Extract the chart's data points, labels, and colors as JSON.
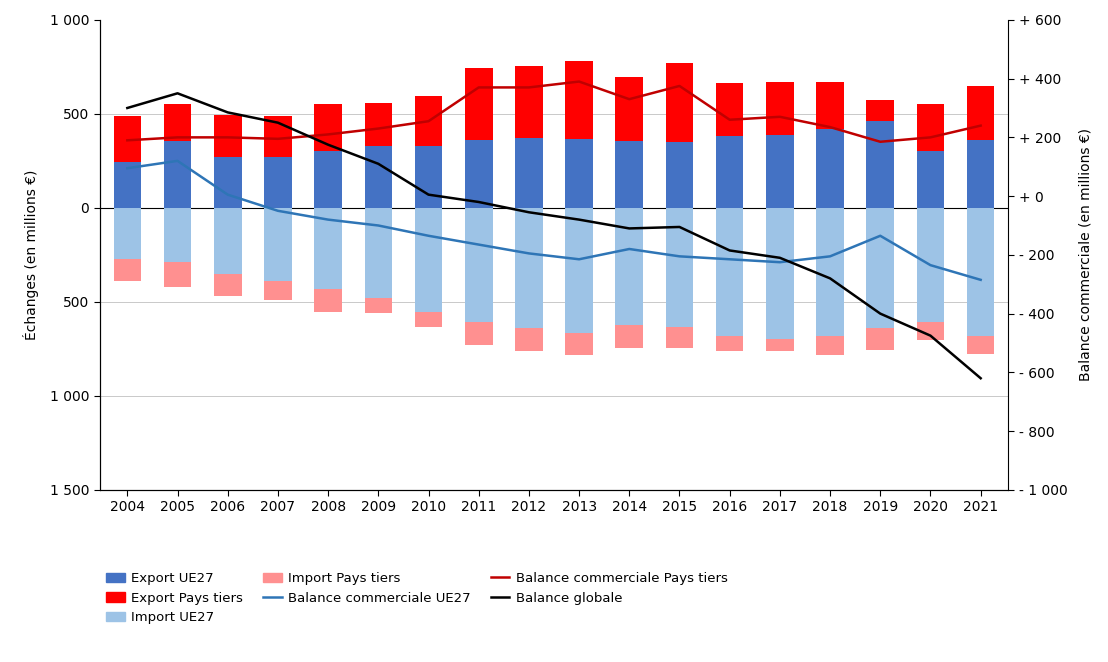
{
  "years": [
    2004,
    2005,
    2006,
    2007,
    2008,
    2009,
    2010,
    2011,
    2012,
    2013,
    2014,
    2015,
    2016,
    2017,
    2018,
    2019,
    2020,
    2021
  ],
  "export_ue27": [
    245,
    355,
    270,
    270,
    300,
    330,
    330,
    360,
    370,
    365,
    355,
    350,
    380,
    390,
    420,
    460,
    305,
    360
  ],
  "export_pays_tiers": [
    245,
    195,
    225,
    220,
    255,
    230,
    265,
    385,
    385,
    415,
    340,
    420,
    285,
    280,
    250,
    115,
    245,
    290
  ],
  "import_ue27": [
    -270,
    -290,
    -350,
    -390,
    -430,
    -480,
    -555,
    -605,
    -640,
    -665,
    -625,
    -635,
    -680,
    -700,
    -680,
    -640,
    -605,
    -680
  ],
  "import_pays_tiers": [
    -120,
    -130,
    -120,
    -100,
    -125,
    -80,
    -80,
    -125,
    -120,
    -120,
    -120,
    -110,
    -80,
    -60,
    -100,
    -115,
    -100,
    -95
  ],
  "balance_ue27": [
    95,
    120,
    5,
    -50,
    -80,
    -100,
    -135,
    -165,
    -195,
    -215,
    -180,
    -205,
    -215,
    -225,
    -205,
    -135,
    -235,
    -285
  ],
  "balance_pays_tiers": [
    190,
    200,
    200,
    195,
    210,
    230,
    255,
    370,
    370,
    390,
    330,
    375,
    260,
    270,
    235,
    185,
    200,
    240
  ],
  "balance_globale": [
    300,
    350,
    285,
    250,
    175,
    110,
    5,
    -20,
    -55,
    -80,
    -110,
    -105,
    -185,
    -210,
    -280,
    -400,
    -475,
    -620
  ],
  "bar_width": 0.55,
  "left_ylim": [
    -1500,
    1000
  ],
  "right_ylim": [
    -1000,
    600
  ],
  "left_yticks": [
    -1500,
    -1000,
    -500,
    0,
    500,
    1000
  ],
  "left_yticklabels": [
    "1 500",
    "1 000",
    "500",
    "0",
    "500",
    "1 000"
  ],
  "right_yticks": [
    -1000,
    -800,
    -600,
    -400,
    -200,
    0,
    200,
    400,
    600
  ],
  "right_yticklabels": [
    "- 1 000",
    "- 800",
    "- 600",
    "- 400",
    "- 200",
    "+ 0",
    "+ 200",
    "+ 400",
    "+ 600"
  ],
  "ylabel_left": "Échanges (en millions €)",
  "ylabel_right": "Balance commerciale (en millions €)",
  "colors": {
    "export_ue27": "#4472C4",
    "export_pays_tiers": "#FF0000",
    "import_ue27": "#9DC3E6",
    "import_pays_tiers": "#FF9090",
    "balance_ue27": "#2E75B6",
    "balance_pays_tiers": "#C00000",
    "balance_globale": "#000000"
  },
  "grid_yvals": [
    -1000,
    -500,
    0,
    500
  ],
  "hgrid_color": "#C0C0C0",
  "tick_color": "#888888"
}
